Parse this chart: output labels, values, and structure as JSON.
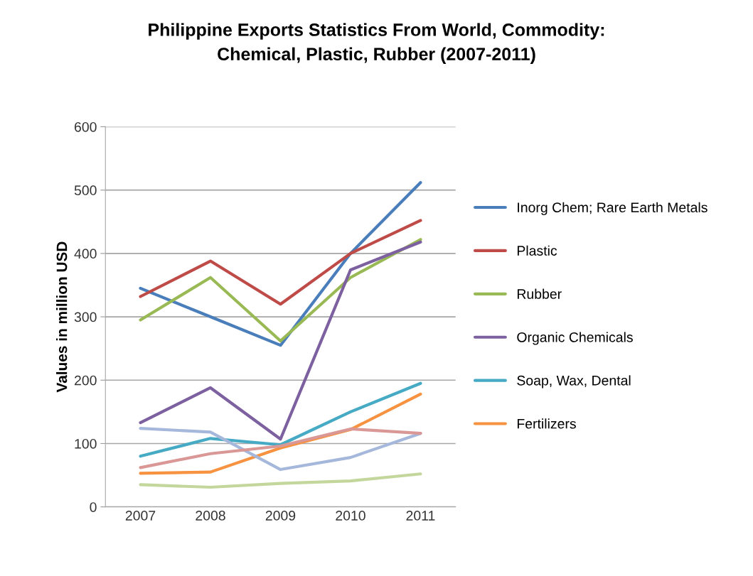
{
  "chart_data": {
    "type": "line",
    "title": "Philippine Exports Statistics From World, Commodity:\nChemical, Plastic, Rubber (2007-2011)",
    "ylabel": "Values in million USD",
    "categories": [
      "2007",
      "2008",
      "2009",
      "2010",
      "2011"
    ],
    "ylim": [
      0,
      600
    ],
    "yticks": [
      0,
      100,
      200,
      300,
      400,
      500,
      600
    ],
    "grid": "y",
    "legend": "right",
    "line_style": "solid",
    "series": [
      {
        "name": "Inorg Chem; Rare Earth Metals",
        "color": "#4a7ebb",
        "values": [
          345,
          300,
          255,
          400,
          512
        ]
      },
      {
        "name": "Plastic",
        "color": "#be4b48",
        "values": [
          332,
          388,
          320,
          400,
          452
        ]
      },
      {
        "name": "Rubber",
        "color": "#98b954",
        "values": [
          295,
          362,
          262,
          362,
          422
        ]
      },
      {
        "name": "Organic Chemicals",
        "color": "#7d60a0",
        "values": [
          133,
          188,
          107,
          374,
          418
        ]
      },
      {
        "name": "Soap, Wax, Dental",
        "color": "#46aac5",
        "values": [
          80,
          108,
          98,
          150,
          195
        ]
      },
      {
        "name": "Fertilizers",
        "color": "#f69240",
        "values": [
          53,
          55,
          93,
          122,
          178
        ]
      },
      {
        "color": "#a5b8dc",
        "values": [
          124,
          118,
          59,
          78,
          116
        ]
      },
      {
        "color": "#d99795",
        "values": [
          62,
          84,
          96,
          123,
          116
        ]
      },
      {
        "color": "#c3d69b",
        "values": [
          35,
          31,
          37,
          41,
          52
        ]
      }
    ]
  }
}
